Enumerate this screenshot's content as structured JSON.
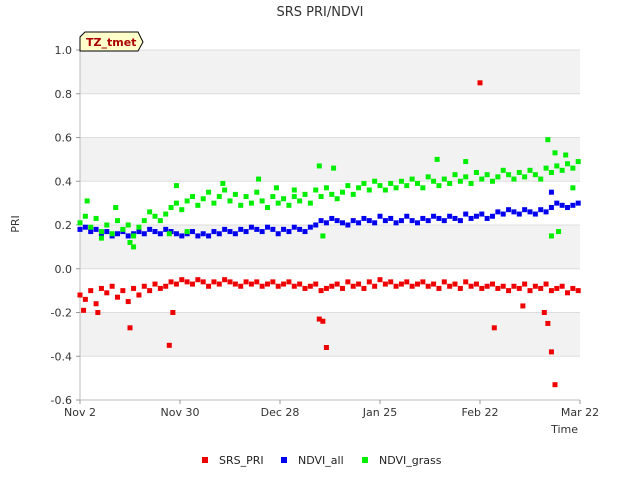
{
  "chart_data": {
    "type": "scatter",
    "title": "SRS PRI/NDVI",
    "xlabel": "Time",
    "ylabel": "PRI",
    "badge": "TZ_tmet",
    "x_ticks": [
      "Nov 2",
      "Nov 30",
      "Dec 28",
      "Jan 25",
      "Feb 22",
      "Mar 22"
    ],
    "x_range_days": [
      0,
      140
    ],
    "x_tick_days": [
      0,
      28,
      56,
      84,
      112,
      140
    ],
    "y_ticks": [
      "1.0",
      "0.8",
      "0.6",
      "0.4",
      "0.2",
      "0.0",
      "-0.2",
      "-0.4",
      "-0.6"
    ],
    "ylim": [
      -0.6,
      1.0
    ],
    "grid": true,
    "legend_position": "bottom",
    "series": [
      {
        "name": "SRS_PRI",
        "color": "#ee0000",
        "x": [
          0,
          1.5,
          3,
          4.5,
          6,
          7.5,
          9,
          10.5,
          12,
          13.5,
          15,
          16.5,
          18,
          19.5,
          21,
          22.5,
          24,
          25.5,
          27,
          28.5,
          30,
          31.5,
          33,
          34.5,
          36,
          37.5,
          39,
          40.5,
          42,
          43.5,
          45,
          46.5,
          48,
          49.5,
          51,
          52.5,
          54,
          55.5,
          57,
          58.5,
          60,
          61.5,
          63,
          64.5,
          66,
          67.5,
          69,
          70.5,
          72,
          73.5,
          75,
          76.5,
          78,
          79.5,
          81,
          82.5,
          84,
          85.5,
          87,
          88.5,
          90,
          91.5,
          93,
          94.5,
          96,
          97.5,
          99,
          100.5,
          102,
          103.5,
          105,
          106.5,
          108,
          109.5,
          111,
          112.5,
          114,
          115.5,
          117,
          118.5,
          120,
          121.5,
          123,
          124.5,
          126,
          127.5,
          129,
          130.5,
          132,
          133.5,
          135,
          136.5,
          138,
          139.5,
          1,
          5,
          14,
          25,
          26,
          67,
          68,
          69,
          112,
          116,
          124,
          130,
          131,
          132,
          133
        ],
        "y": [
          -0.12,
          -0.14,
          -0.1,
          -0.16,
          -0.09,
          -0.11,
          -0.08,
          -0.13,
          -0.1,
          -0.15,
          -0.09,
          -0.12,
          -0.08,
          -0.1,
          -0.07,
          -0.09,
          -0.08,
          -0.06,
          -0.07,
          -0.05,
          -0.06,
          -0.07,
          -0.05,
          -0.06,
          -0.08,
          -0.06,
          -0.07,
          -0.05,
          -0.06,
          -0.07,
          -0.08,
          -0.06,
          -0.07,
          -0.06,
          -0.08,
          -0.07,
          -0.06,
          -0.08,
          -0.07,
          -0.06,
          -0.08,
          -0.07,
          -0.09,
          -0.08,
          -0.07,
          -0.1,
          -0.09,
          -0.08,
          -0.07,
          -0.09,
          -0.06,
          -0.08,
          -0.07,
          -0.09,
          -0.06,
          -0.08,
          -0.05,
          -0.07,
          -0.06,
          -0.08,
          -0.07,
          -0.06,
          -0.08,
          -0.07,
          -0.06,
          -0.08,
          -0.07,
          -0.09,
          -0.06,
          -0.08,
          -0.07,
          -0.09,
          -0.06,
          -0.08,
          -0.07,
          -0.09,
          -0.08,
          -0.07,
          -0.09,
          -0.08,
          -0.1,
          -0.08,
          -0.09,
          -0.07,
          -0.1,
          -0.08,
          -0.09,
          -0.07,
          -0.1,
          -0.09,
          -0.08,
          -0.11,
          -0.09,
          -0.1,
          -0.19,
          -0.2,
          -0.27,
          -0.35,
          -0.2,
          -0.23,
          -0.24,
          -0.36,
          0.85,
          -0.27,
          -0.17,
          -0.2,
          -0.25,
          -0.38,
          -0.53
        ]
      },
      {
        "name": "NDVI_all",
        "color": "#0000ee",
        "x": [
          0,
          1.5,
          3,
          4.5,
          6,
          7.5,
          9,
          10.5,
          12,
          13.5,
          15,
          16.5,
          18,
          19.5,
          21,
          22.5,
          24,
          25.5,
          27,
          28.5,
          30,
          31.5,
          33,
          34.5,
          36,
          37.5,
          39,
          40.5,
          42,
          43.5,
          45,
          46.5,
          48,
          49.5,
          51,
          52.5,
          54,
          55.5,
          57,
          58.5,
          60,
          61.5,
          63,
          64.5,
          66,
          67.5,
          69,
          70.5,
          72,
          73.5,
          75,
          76.5,
          78,
          79.5,
          81,
          82.5,
          84,
          85.5,
          87,
          88.5,
          90,
          91.5,
          93,
          94.5,
          96,
          97.5,
          99,
          100.5,
          102,
          103.5,
          105,
          106.5,
          108,
          109.5,
          111,
          112.5,
          114,
          115.5,
          117,
          118.5,
          120,
          121.5,
          123,
          124.5,
          126,
          127.5,
          129,
          130.5,
          132,
          133.5,
          135,
          136.5,
          138,
          139.5,
          132
        ],
        "y": [
          0.18,
          0.19,
          0.17,
          0.18,
          0.16,
          0.17,
          0.15,
          0.16,
          0.17,
          0.15,
          0.16,
          0.17,
          0.16,
          0.18,
          0.17,
          0.16,
          0.18,
          0.17,
          0.16,
          0.15,
          0.16,
          0.17,
          0.15,
          0.16,
          0.15,
          0.17,
          0.16,
          0.18,
          0.17,
          0.16,
          0.18,
          0.17,
          0.19,
          0.18,
          0.17,
          0.19,
          0.18,
          0.16,
          0.18,
          0.17,
          0.19,
          0.18,
          0.17,
          0.19,
          0.2,
          0.22,
          0.21,
          0.23,
          0.22,
          0.21,
          0.2,
          0.22,
          0.21,
          0.23,
          0.22,
          0.21,
          0.24,
          0.22,
          0.23,
          0.21,
          0.22,
          0.24,
          0.22,
          0.21,
          0.23,
          0.22,
          0.24,
          0.23,
          0.22,
          0.24,
          0.23,
          0.22,
          0.25,
          0.23,
          0.24,
          0.25,
          0.23,
          0.24,
          0.26,
          0.25,
          0.27,
          0.26,
          0.25,
          0.27,
          0.26,
          0.25,
          0.27,
          0.26,
          0.28,
          0.3,
          0.29,
          0.28,
          0.29,
          0.3,
          0.35
        ]
      },
      {
        "name": "NDVI_grass",
        "color": "#00ee00",
        "x": [
          0,
          1.5,
          3,
          4.5,
          6,
          7.5,
          9,
          10.5,
          12,
          13.5,
          15,
          16.5,
          18,
          19.5,
          21,
          22.5,
          24,
          25.5,
          27,
          28.5,
          30,
          31.5,
          33,
          34.5,
          36,
          37.5,
          39,
          40.5,
          42,
          43.5,
          45,
          46.5,
          48,
          49.5,
          51,
          52.5,
          54,
          55.5,
          57,
          58.5,
          60,
          61.5,
          63,
          64.5,
          66,
          67.5,
          69,
          70.5,
          72,
          73.5,
          75,
          76.5,
          78,
          79.5,
          81,
          82.5,
          84,
          85.5,
          87,
          88.5,
          90,
          91.5,
          93,
          94.5,
          96,
          97.5,
          99,
          100.5,
          102,
          103.5,
          105,
          106.5,
          108,
          109.5,
          111,
          112.5,
          114,
          115.5,
          117,
          118.5,
          120,
          121.5,
          123,
          124.5,
          126,
          127.5,
          129,
          130.5,
          132,
          133.5,
          135,
          136.5,
          138,
          139.5,
          2,
          6,
          10,
          14,
          15,
          25,
          27,
          30,
          40,
          50,
          55,
          60,
          67,
          68,
          71,
          100,
          108,
          131,
          132,
          133,
          134,
          136,
          138
        ],
        "y": [
          0.21,
          0.24,
          0.19,
          0.23,
          0.17,
          0.2,
          0.16,
          0.22,
          0.18,
          0.2,
          0.15,
          0.19,
          0.22,
          0.26,
          0.24,
          0.22,
          0.25,
          0.28,
          0.3,
          0.27,
          0.31,
          0.33,
          0.29,
          0.32,
          0.35,
          0.3,
          0.33,
          0.36,
          0.31,
          0.34,
          0.29,
          0.33,
          0.3,
          0.35,
          0.31,
          0.28,
          0.33,
          0.3,
          0.32,
          0.29,
          0.33,
          0.31,
          0.34,
          0.3,
          0.36,
          0.33,
          0.37,
          0.34,
          0.32,
          0.35,
          0.38,
          0.34,
          0.37,
          0.39,
          0.36,
          0.4,
          0.38,
          0.36,
          0.39,
          0.37,
          0.4,
          0.38,
          0.41,
          0.39,
          0.37,
          0.42,
          0.4,
          0.38,
          0.41,
          0.39,
          0.43,
          0.4,
          0.42,
          0.39,
          0.44,
          0.41,
          0.43,
          0.4,
          0.42,
          0.45,
          0.43,
          0.41,
          0.44,
          0.42,
          0.45,
          0.43,
          0.41,
          0.46,
          0.44,
          0.47,
          0.45,
          0.48,
          0.46,
          0.49,
          0.31,
          0.14,
          0.28,
          0.12,
          0.1,
          0.16,
          0.38,
          0.17,
          0.39,
          0.41,
          0.37,
          0.36,
          0.47,
          0.15,
          0.46,
          0.5,
          0.49,
          0.59,
          0.15,
          0.53,
          0.17,
          0.52,
          0.37
        ]
      }
    ]
  }
}
